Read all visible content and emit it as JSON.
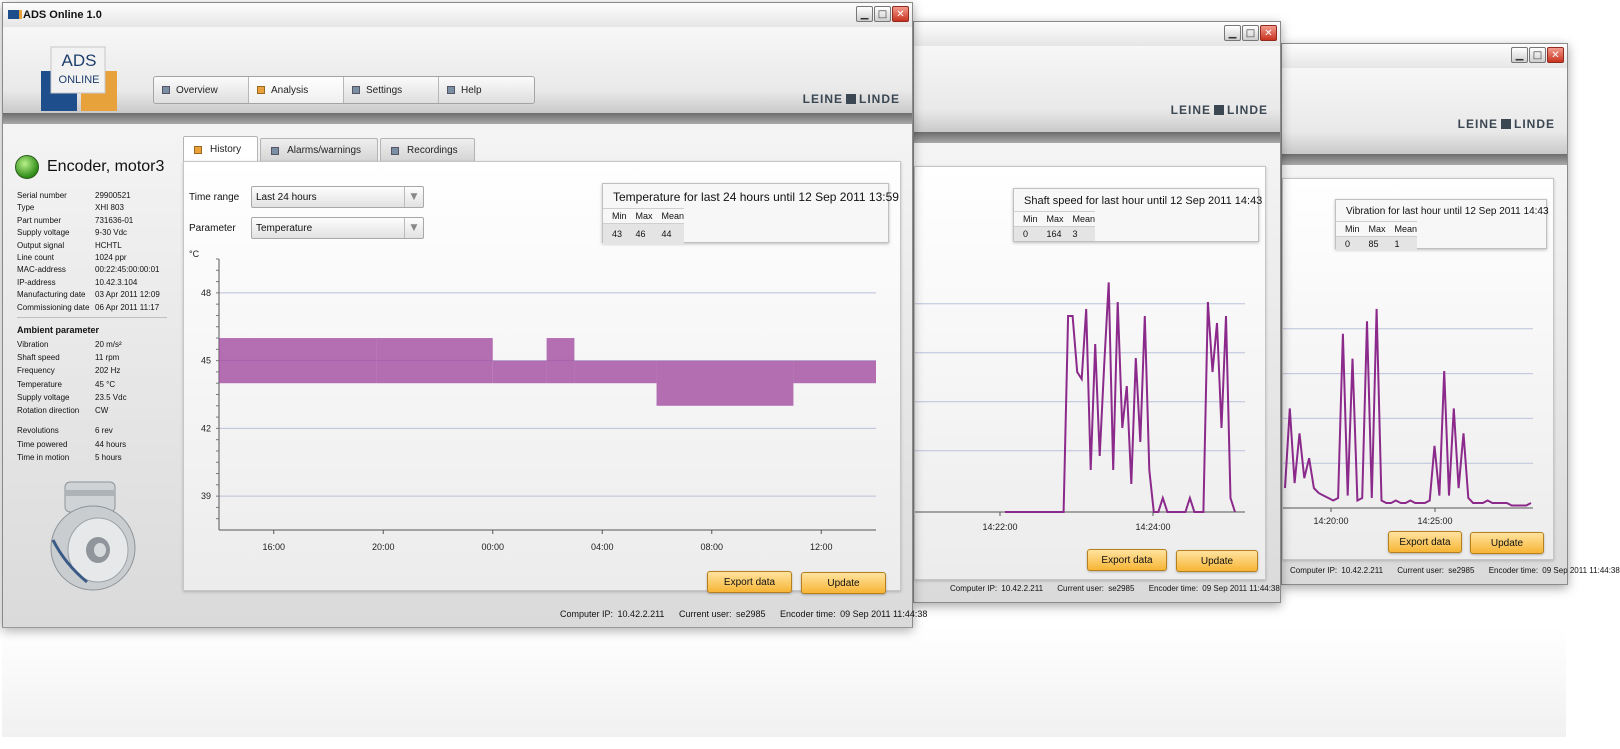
{
  "app": {
    "title": "ADS Online 1.0"
  },
  "window_buttons": [
    "minimize-icon",
    "maximize-icon",
    "close-icon"
  ],
  "logo": {
    "line1": "ADS",
    "line2": "ONLINE"
  },
  "brand": {
    "left": "LEINE",
    "right": "LINDE"
  },
  "nav": [
    {
      "label": "Overview",
      "icon": "square-bullet-icon"
    },
    {
      "label": "Analysis",
      "icon": "square-bullet-icon",
      "active": true
    },
    {
      "label": "Settings",
      "icon": "square-bullet-icon"
    },
    {
      "label": "Help",
      "icon": "square-bullet-icon"
    }
  ],
  "device": {
    "name": "Encoder, motor3",
    "status_color": "#3aa01f",
    "info": [
      {
        "label": "Serial number",
        "value": "29900521"
      },
      {
        "label": "Type",
        "value": "XHI 803"
      },
      {
        "label": "Part number",
        "value": "731636-01"
      },
      {
        "label": "Supply voltage",
        "value": "9-30 Vdc"
      },
      {
        "label": "Output signal",
        "value": "HCHTL"
      },
      {
        "label": "Line count",
        "value": "1024  ppr"
      },
      {
        "label": "MAC-address",
        "value": "00:22:45:00:00:01"
      },
      {
        "label": "IP-address",
        "value": "10.42.3.104"
      },
      {
        "label": "Manufacturing date",
        "value": "03 Apr 2011 12:09"
      },
      {
        "label": "Commissioning date",
        "value": "06 Apr 2011 11:17"
      }
    ],
    "ambient_title": "Ambient parameter",
    "ambient": [
      {
        "label": "Vibration",
        "value": "20  m/s²"
      },
      {
        "label": "Shaft speed",
        "value": "11  rpm"
      },
      {
        "label": "Frequency",
        "value": "202  Hz"
      },
      {
        "label": "Temperature",
        "value": "45  °C"
      },
      {
        "label": "Supply voltage",
        "value": "23.5  Vdc"
      },
      {
        "label": "Rotation direction",
        "value": "CW"
      }
    ],
    "counters": [
      {
        "label": "Revolutions",
        "value": "6   rev"
      },
      {
        "label": "Time powered",
        "value": "44   hours"
      },
      {
        "label": "Time in motion",
        "value": "5   hours"
      }
    ]
  },
  "tabs": [
    {
      "label": "History",
      "active": true
    },
    {
      "label": "Alarms/warnings"
    },
    {
      "label": "Recordings"
    }
  ],
  "controls": {
    "time_range_label": "Time range",
    "time_range_value": "Last 24 hours",
    "parameter_label": "Parameter",
    "parameter_value": "Temperature"
  },
  "stats_main": {
    "title": "Temperature for last 24 hours until 12 Sep 2011 13:59",
    "headers": [
      "Min",
      "Max",
      "Mean"
    ],
    "values": [
      "43",
      "46",
      "44"
    ]
  },
  "stats_2": {
    "title": "Shaft speed for last hour until 12 Sep 2011 14:43",
    "headers": [
      "Min",
      "Max",
      "Mean"
    ],
    "values": [
      "0",
      "164",
      "3"
    ]
  },
  "stats_3": {
    "title": "Vibration for last hour until 12 Sep 2011 14:43",
    "headers": [
      "Min",
      "Max",
      "Mean"
    ],
    "values": [
      "0",
      "85",
      "1"
    ]
  },
  "buttons": {
    "export": "Export data",
    "update": "Update"
  },
  "status": {
    "computer_ip_label": "Computer IP:",
    "computer_ip": "10.42.2.211",
    "user_label": "Current user:",
    "user": "se2985",
    "encoder_time_label": "Encoder time:",
    "encoder_time_main": "09 Sep 2011 11:44:38",
    "encoder_time_2": "09 Sep 2011 11:44:38",
    "encoder_time_3": "09 Sep 2011 11:44:38"
  },
  "chart_data": [
    {
      "type": "area",
      "ylabel": "°C",
      "yticks": [
        39,
        42,
        45,
        48
      ],
      "ylim": [
        37.5,
        49.5
      ],
      "xticks": [
        "16:00",
        "20:00",
        "00:00",
        "04:00",
        "08:00",
        "12:00"
      ],
      "x": [
        "14:00",
        "19:45",
        "00:00",
        "01:58",
        "02:59",
        "05:59",
        "10:59",
        "14:00"
      ],
      "series": [
        {
          "lower": [
            44,
            44,
            44,
            44,
            44,
            43,
            44
          ],
          "upper": [
            46,
            46,
            45,
            46,
            45,
            45,
            45
          ]
        }
      ],
      "color": "#a24ca1",
      "grid": "horizontal"
    },
    {
      "type": "line",
      "xticks": [
        "14:22:00",
        "14:24:00"
      ],
      "color": "#8b2a8b",
      "series": [
        {
          "values": [
            0,
            0,
            0,
            0,
            0,
            0,
            0,
            0,
            0,
            0,
            0,
            0,
            0,
            0,
            140,
            140,
            100,
            95,
            145,
            30,
            120,
            40,
            105,
            164,
            30,
            150,
            60,
            90,
            20,
            110,
            50,
            140,
            30,
            0,
            0,
            10,
            0,
            0,
            0,
            0,
            0,
            10,
            0,
            0,
            0,
            150,
            100,
            135,
            60,
            140,
            10,
            0
          ]
        }
      ]
    },
    {
      "type": "line",
      "xticks": [
        "14:20:00",
        "14:25:00"
      ],
      "color": "#8b2a8b",
      "series": [
        {
          "values": [
            8,
            40,
            10,
            30,
            12,
            20,
            8,
            6,
            5,
            4,
            3,
            4,
            70,
            5,
            60,
            3,
            4,
            75,
            4,
            80,
            3,
            2,
            2,
            3,
            2,
            2,
            3,
            2,
            2,
            2,
            3,
            25,
            5,
            55,
            5,
            40,
            8,
            30,
            4,
            2,
            2,
            2,
            3,
            2,
            2,
            2,
            2,
            1,
            1,
            1,
            1,
            2
          ]
        }
      ]
    }
  ]
}
